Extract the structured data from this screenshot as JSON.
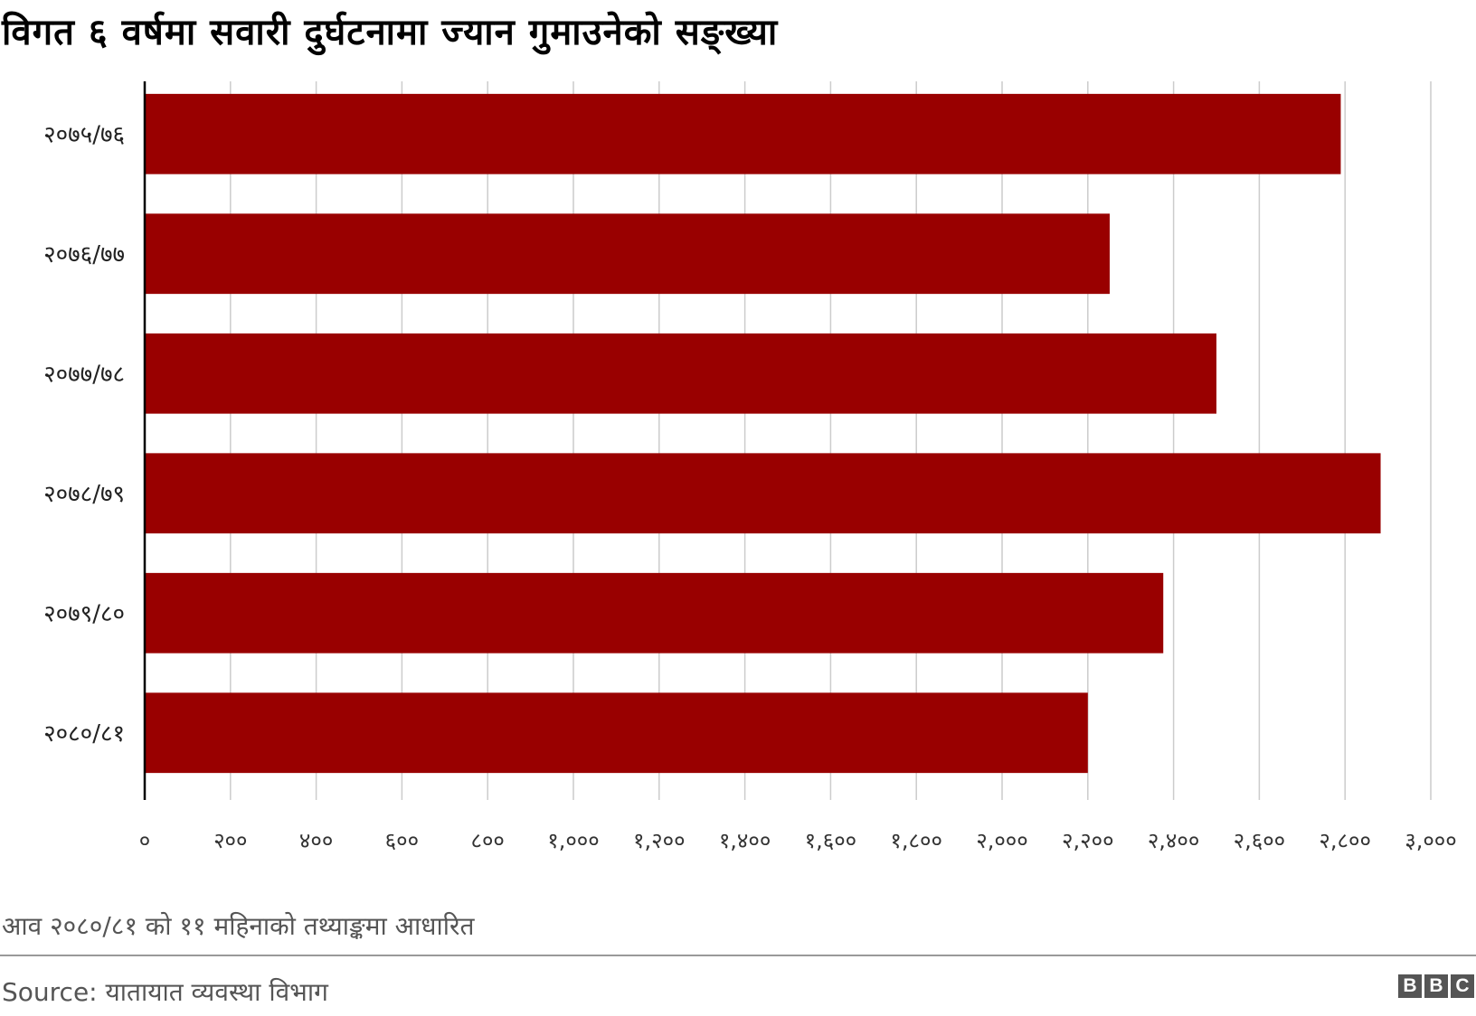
{
  "chart_data": {
    "type": "bar",
    "orientation": "horizontal",
    "title": "विगत ६ वर्षमा सवारी दुर्घटनामा ज्यान गुमाउनेको सङ्ख्या",
    "categories": [
      "२०७५/७६",
      "२०७६/७७",
      "२०७७/७८",
      "२०७८/७९",
      "२०७९/८०",
      "२०८०/८१"
    ],
    "values": [
      2790,
      2251,
      2500,
      2883,
      2376,
      2200
    ],
    "xlim": [
      0,
      3000
    ],
    "x_ticks": [
      "०",
      "२००",
      "४००",
      "६००",
      "८००",
      "१,०००",
      "१,२००",
      "१,४००",
      "१,६००",
      "१,८००",
      "२,०००",
      "२,२००",
      "२,४००",
      "२,६००",
      "२,८००",
      "३,०००"
    ],
    "grid": true,
    "bar_color": "#990000",
    "footnote": "आव २०८०/८१ को ११ महिनाको तथ्याङ्कमा आधारित",
    "source": "Source: यातायात व्यवस्था विभाग",
    "brand": [
      "B",
      "B",
      "C"
    ]
  }
}
